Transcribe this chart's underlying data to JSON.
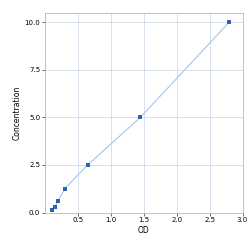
{
  "x_data": [
    0.1,
    0.15,
    0.2,
    0.3,
    0.65,
    1.45,
    2.8
  ],
  "y_data": [
    0.156,
    0.312,
    0.625,
    1.25,
    2.5,
    5.0,
    10.0
  ],
  "xlabel": "OD",
  "ylabel": "Concentration",
  "xlim": [
    0.0,
    3.0
  ],
  "ylim": [
    0.0,
    10.5
  ],
  "xticks": [
    0.5,
    1.0,
    1.5,
    2.0,
    2.5,
    3.0
  ],
  "xtick_labels": [
    "0.5",
    "1.0",
    "1.5",
    "2.0",
    "2.5",
    "3.0"
  ],
  "yticks": [
    0.0,
    2.5,
    5.0,
    7.5,
    10.0
  ],
  "ytick_labels": [
    "0.0",
    "2.5",
    "5.0",
    "7.5",
    "10.0"
  ],
  "marker_color": "#3060b0",
  "line_color": "#a8c4e8",
  "marker": "s",
  "marker_size": 3,
  "grid_color": "#c8d4e8",
  "plot_bg_color": "#ffffff",
  "fig_bg_color": "#ffffff",
  "label_fontsize": 5.5,
  "tick_fontsize": 5.0,
  "line_width": 0.8
}
